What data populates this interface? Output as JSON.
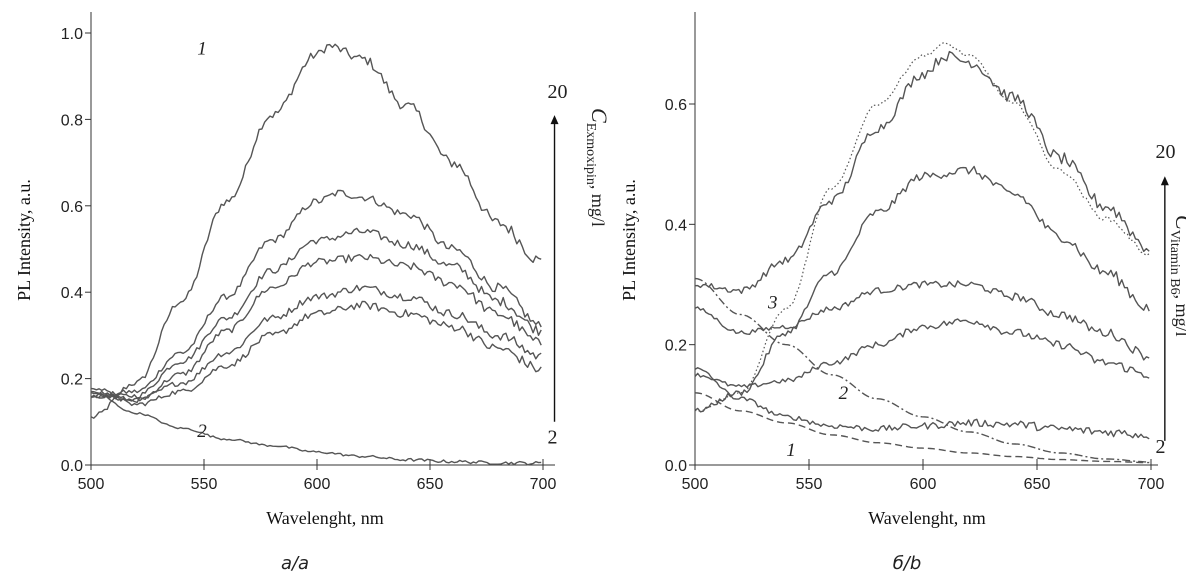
{
  "chart_data": [
    {
      "type": "line",
      "panel_label": "a/a",
      "xlabel": "Wavelenght, nm",
      "ylabel": "PL Intensity, a.u.",
      "xlim": [
        500,
        712
      ],
      "ylim": [
        0,
        1.05
      ],
      "xticks": [
        500,
        550,
        600,
        650,
        700
      ],
      "yticks": [
        0.0,
        0.2,
        0.4,
        0.6,
        0.8,
        1.0
      ],
      "grid": false,
      "color": "#555555",
      "series": [
        {
          "x": [
            500,
            520,
            540,
            560,
            580,
            600,
            605,
            620,
            640,
            660,
            680,
            700
          ],
          "y": [
            0.11,
            0.19,
            0.38,
            0.61,
            0.81,
            0.95,
            0.97,
            0.94,
            0.83,
            0.7,
            0.56,
            0.47
          ],
          "style": "solid",
          "noise": 0.015
        },
        {
          "x": [
            500,
            520,
            540,
            560,
            580,
            600,
            610,
            620,
            640,
            660,
            680,
            700
          ],
          "y": [
            0.16,
            0.17,
            0.26,
            0.39,
            0.52,
            0.61,
            0.63,
            0.62,
            0.58,
            0.5,
            0.41,
            0.32
          ],
          "style": "solid",
          "noise": 0.012
        },
        {
          "x": [
            500,
            520,
            540,
            560,
            580,
            600,
            620,
            640,
            660,
            680,
            700
          ],
          "y": [
            0.16,
            0.16,
            0.24,
            0.34,
            0.45,
            0.52,
            0.54,
            0.51,
            0.46,
            0.38,
            0.31
          ],
          "style": "solid",
          "noise": 0.012
        },
        {
          "x": [
            500,
            520,
            540,
            560,
            580,
            600,
            620,
            640,
            660,
            680,
            700
          ],
          "y": [
            0.16,
            0.15,
            0.21,
            0.31,
            0.41,
            0.47,
            0.48,
            0.46,
            0.42,
            0.35,
            0.28
          ],
          "style": "solid",
          "noise": 0.012
        },
        {
          "x": [
            500,
            520,
            540,
            560,
            580,
            600,
            620,
            640,
            660,
            680,
            700
          ],
          "y": [
            0.17,
            0.15,
            0.19,
            0.26,
            0.34,
            0.39,
            0.41,
            0.39,
            0.35,
            0.3,
            0.25
          ],
          "style": "solid",
          "noise": 0.012
        },
        {
          "x": [
            500,
            520,
            540,
            560,
            580,
            600,
            620,
            640,
            660,
            680,
            700
          ],
          "y": [
            0.18,
            0.14,
            0.17,
            0.23,
            0.3,
            0.35,
            0.37,
            0.35,
            0.32,
            0.27,
            0.22
          ],
          "style": "solid",
          "noise": 0.012
        },
        {
          "x": [
            500,
            520,
            540,
            560,
            580,
            600,
            620,
            640,
            660,
            680,
            700
          ],
          "y": [
            0.17,
            0.12,
            0.085,
            0.06,
            0.045,
            0.03,
            0.02,
            0.012,
            0.008,
            0.005,
            0.004
          ],
          "style": "solid",
          "noise": 0.004
        }
      ],
      "annotations": [
        {
          "text": "1",
          "x": 547,
          "y": 0.95,
          "kind": "italic"
        },
        {
          "text": "2",
          "x": 547,
          "y": 0.065,
          "kind": "italic"
        },
        {
          "text": "20",
          "x": 702,
          "y": 0.85,
          "kind": "end"
        },
        {
          "text": "2",
          "x": 702,
          "y": 0.05,
          "kind": "end"
        }
      ],
      "concentration": {
        "arrow_x": 702,
        "y_from": 0.1,
        "y_to": 0.81,
        "label_main": "C",
        "label_sub": "Exmoxipin",
        "label_unit": ", mg/l"
      }
    },
    {
      "type": "line",
      "panel_label": "б/b",
      "xlabel": "Wavelenght, nm",
      "ylabel": "PL Intensity, a.u.",
      "xlim": [
        500,
        703
      ],
      "ylim": [
        0,
        0.72
      ],
      "xticks": [
        500,
        550,
        600,
        650,
        700
      ],
      "yticks": [
        0.0,
        0.2,
        0.4,
        0.6
      ],
      "grid": false,
      "color": "#555555",
      "series": [
        {
          "x": [
            500,
            520,
            540,
            560,
            580,
            600,
            610,
            620,
            640,
            660,
            680,
            700
          ],
          "y": [
            0.3,
            0.29,
            0.34,
            0.44,
            0.56,
            0.65,
            0.68,
            0.67,
            0.61,
            0.51,
            0.43,
            0.36
          ],
          "style": "solid",
          "noise": 0.012
        },
        {
          "x": [
            500,
            520,
            540,
            560,
            580,
            600,
            620,
            640,
            660,
            680,
            700
          ],
          "y": [
            0.09,
            0.12,
            0.22,
            0.32,
            0.42,
            0.48,
            0.49,
            0.45,
            0.38,
            0.32,
            0.26
          ],
          "style": "solid",
          "noise": 0.01
        },
        {
          "x": [
            500,
            520,
            540,
            560,
            580,
            600,
            620,
            640,
            660,
            680,
            700
          ],
          "y": [
            0.26,
            0.22,
            0.23,
            0.26,
            0.29,
            0.3,
            0.3,
            0.28,
            0.25,
            0.22,
            0.18
          ],
          "style": "solid",
          "noise": 0.008
        },
        {
          "x": [
            500,
            520,
            540,
            560,
            580,
            600,
            620,
            640,
            660,
            680,
            700
          ],
          "y": [
            0.15,
            0.13,
            0.14,
            0.17,
            0.2,
            0.23,
            0.24,
            0.22,
            0.2,
            0.17,
            0.15
          ],
          "style": "solid",
          "noise": 0.008
        },
        {
          "x": [
            500,
            520,
            540,
            560,
            580,
            600,
            620,
            640,
            660,
            680,
            700
          ],
          "y": [
            0.16,
            0.11,
            0.08,
            0.065,
            0.06,
            0.065,
            0.07,
            0.068,
            0.06,
            0.055,
            0.05
          ],
          "style": "solid",
          "noise": 0.008
        },
        {
          "x": [
            500,
            520,
            540,
            560,
            580,
            600,
            610,
            620,
            640,
            660,
            680,
            700
          ],
          "y": [
            0.09,
            0.12,
            0.26,
            0.46,
            0.6,
            0.68,
            0.7,
            0.68,
            0.6,
            0.49,
            0.41,
            0.35
          ],
          "style": "dotted",
          "noise": 0.004
        },
        {
          "x": [
            500,
            520,
            540,
            560,
            580,
            600,
            620,
            640,
            660,
            680,
            700
          ],
          "y": [
            0.31,
            0.25,
            0.2,
            0.15,
            0.11,
            0.08,
            0.055,
            0.035,
            0.02,
            0.01,
            0.005
          ],
          "style": "dashdot",
          "noise": 0
        },
        {
          "x": [
            500,
            520,
            540,
            560,
            580,
            600,
            620,
            640,
            660,
            680,
            700
          ],
          "y": [
            0.12,
            0.09,
            0.07,
            0.05,
            0.037,
            0.028,
            0.02,
            0.014,
            0.009,
            0.006,
            0.004
          ],
          "style": "dashed",
          "noise": 0
        }
      ],
      "annotations": [
        {
          "text": "3",
          "x": 532,
          "y": 0.26,
          "kind": "italic"
        },
        {
          "text": "2",
          "x": 563,
          "y": 0.11,
          "kind": "italic"
        },
        {
          "text": "1",
          "x": 540,
          "y": 0.015,
          "kind": "italic"
        },
        {
          "text": "20",
          "x": 702,
          "y": 0.51,
          "kind": "end"
        },
        {
          "text": "2",
          "x": 702,
          "y": 0.02,
          "kind": "end"
        }
      ],
      "concentration": {
        "arrow_x": 703,
        "y_from": 0.04,
        "y_to": 0.48,
        "label_main": "C",
        "label_sub": "Vitamin B6",
        "label_unit": ", mg/l"
      }
    }
  ]
}
